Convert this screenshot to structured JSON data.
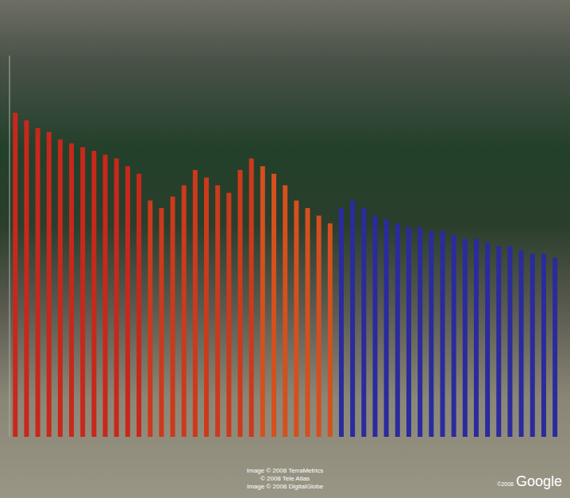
{
  "chart_data": {
    "type": "bar",
    "categories": [
      null,
      null,
      null,
      null,
      null,
      null,
      null,
      null,
      null,
      null,
      null,
      null,
      null,
      null,
      null,
      null,
      null,
      null,
      null,
      null,
      null,
      null,
      null,
      null,
      null,
      null,
      null,
      null,
      null,
      null,
      null,
      null,
      null,
      null,
      null,
      null,
      null,
      null,
      null,
      null,
      null,
      null,
      null,
      null,
      null,
      null,
      null,
      null,
      null
    ],
    "values": [
      85,
      83,
      81,
      80,
      78,
      77,
      76,
      75,
      74,
      73,
      71,
      69,
      62,
      60,
      63,
      66,
      70,
      68,
      66,
      64,
      70,
      73,
      71,
      69,
      66,
      62,
      60,
      58,
      56,
      60,
      62,
      60,
      58,
      57,
      56,
      55,
      55,
      54,
      54,
      53,
      52,
      52,
      51,
      50,
      50,
      49,
      48,
      48,
      47
    ],
    "colors": [
      "#c8281c",
      "#c8281c",
      "#c8281c",
      "#c8281c",
      "#c8281c",
      "#c8281c",
      "#c8281c",
      "#c8281c",
      "#c8281c",
      "#c8281c",
      "#c8281c",
      "#c8281c",
      "#cc3a1c",
      "#cc3a1c",
      "#cc3a1c",
      "#cc3a1c",
      "#cc3a1c",
      "#cc3a1c",
      "#cc3a1c",
      "#cc3a1c",
      "#cc3a1c",
      "#cc3a1c",
      "#d4501e",
      "#d4501e",
      "#d4501e",
      "#d4501e",
      "#d4501e",
      "#d4501e",
      "#d4501e",
      "#2b2b9e",
      "#2b2b9e",
      "#2b2b9e",
      "#2b2b9e",
      "#2b2b9e",
      "#2b2b9e",
      "#2b2b9e",
      "#2b2b9e",
      "#2b2b9e",
      "#2b2b9e",
      "#2b2b9e",
      "#2b2b9e",
      "#2b2b9e",
      "#2b2b9e",
      "#2b2b9e",
      "#2b2b9e",
      "#2b2b9e",
      "#2b2b9e",
      "#2b2b9e",
      "#2b2b9e"
    ],
    "ylim": [
      0,
      100
    ],
    "tick_labels": false,
    "annotations": [
      "Image © 2008 TerraMetrics",
      "© 2008 Tele Atlas",
      "Image © 2008 DigitalGlobe",
      "©2008",
      "Google"
    ]
  }
}
